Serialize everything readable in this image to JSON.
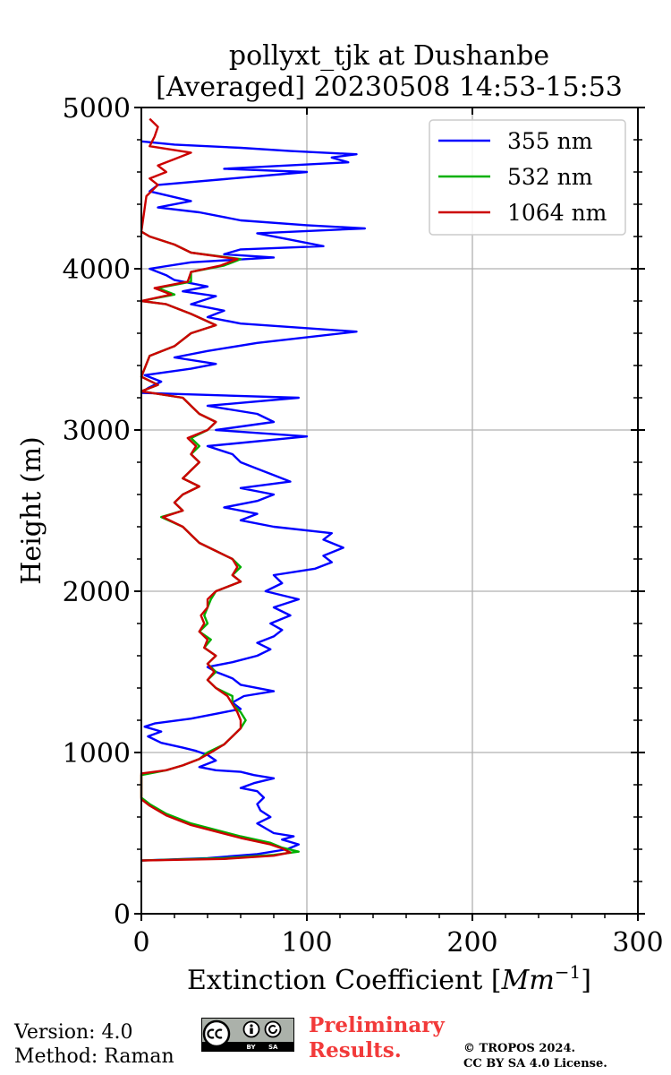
{
  "chart_data": {
    "type": "line",
    "title_line1": "pollyxt_tjk at Dushanbe",
    "title_line2": "[Averaged] 20230508 14:53-15:53",
    "xlabel_main": "Extinction Coefficient [",
    "xlabel_unit": "Mm",
    "xlabel_exp": "−1",
    "xlabel_close": "]",
    "ylabel": "Height (m)",
    "xlim": [
      0,
      300
    ],
    "ylim": [
      0,
      5000
    ],
    "xticks": [
      0,
      100,
      200,
      300
    ],
    "xtick_labels": [
      "0",
      "100",
      "200",
      "300"
    ],
    "yticks": [
      0,
      1000,
      2000,
      3000,
      4000,
      5000
    ],
    "ytick_labels": [
      "0",
      "1000",
      "2000",
      "3000",
      "4000",
      "5000"
    ],
    "grid": true,
    "legend_position": "top-right",
    "series": [
      {
        "name": "355 nm",
        "color": "#0000ff",
        "points": [
          [
            0,
            330
          ],
          [
            40,
            345
          ],
          [
            70,
            370
          ],
          [
            88,
            400
          ],
          [
            95,
            430
          ],
          [
            85,
            460
          ],
          [
            92,
            480
          ],
          [
            80,
            500
          ],
          [
            75,
            530
          ],
          [
            70,
            560
          ],
          [
            78,
            600
          ],
          [
            72,
            640
          ],
          [
            70,
            680
          ],
          [
            74,
            720
          ],
          [
            70,
            760
          ],
          [
            60,
            780
          ],
          [
            68,
            810
          ],
          [
            80,
            840
          ],
          [
            68,
            860
          ],
          [
            60,
            880
          ],
          [
            45,
            890
          ],
          [
            35,
            910
          ],
          [
            45,
            950
          ],
          [
            40,
            985
          ],
          [
            33,
            1010
          ],
          [
            25,
            1030
          ],
          [
            12,
            1060
          ],
          [
            4,
            1100
          ],
          [
            12,
            1130
          ],
          [
            2,
            1160
          ],
          [
            8,
            1180
          ],
          [
            30,
            1210
          ],
          [
            45,
            1240
          ],
          [
            60,
            1270
          ],
          [
            55,
            1310
          ],
          [
            62,
            1350
          ],
          [
            80,
            1380
          ],
          [
            60,
            1420
          ],
          [
            55,
            1460
          ],
          [
            45,
            1500
          ],
          [
            40,
            1530
          ],
          [
            55,
            1560
          ],
          [
            70,
            1600
          ],
          [
            78,
            1640
          ],
          [
            70,
            1680
          ],
          [
            80,
            1720
          ],
          [
            85,
            1760
          ],
          [
            78,
            1800
          ],
          [
            90,
            1850
          ],
          [
            80,
            1900
          ],
          [
            95,
            1950
          ],
          [
            75,
            2000
          ],
          [
            85,
            2050
          ],
          [
            80,
            2100
          ],
          [
            105,
            2140
          ],
          [
            115,
            2180
          ],
          [
            110,
            2220
          ],
          [
            122,
            2270
          ],
          [
            110,
            2320
          ],
          [
            115,
            2360
          ],
          [
            80,
            2400
          ],
          [
            60,
            2440
          ],
          [
            70,
            2480
          ],
          [
            50,
            2520
          ],
          [
            70,
            2560
          ],
          [
            80,
            2600
          ],
          [
            60,
            2640
          ],
          [
            90,
            2680
          ],
          [
            80,
            2720
          ],
          [
            70,
            2760
          ],
          [
            60,
            2800
          ],
          [
            55,
            2850
          ],
          [
            40,
            2900
          ],
          [
            100,
            2960
          ],
          [
            45,
            3000
          ],
          [
            80,
            3050
          ],
          [
            70,
            3100
          ],
          [
            40,
            3150
          ],
          [
            95,
            3200
          ],
          [
            0,
            3230
          ],
          [
            4,
            3260
          ],
          [
            12,
            3300
          ],
          [
            2,
            3340
          ],
          [
            30,
            3380
          ],
          [
            45,
            3410
          ],
          [
            20,
            3450
          ],
          [
            40,
            3490
          ],
          [
            70,
            3540
          ],
          [
            130,
            3610
          ],
          [
            60,
            3660
          ],
          [
            40,
            3700
          ],
          [
            50,
            3740
          ],
          [
            30,
            3780
          ],
          [
            45,
            3830
          ],
          [
            25,
            3860
          ],
          [
            40,
            3890
          ],
          [
            20,
            3930
          ],
          [
            15,
            3960
          ],
          [
            5,
            4000
          ],
          [
            30,
            4040
          ],
          [
            80,
            4070
          ],
          [
            50,
            4090
          ],
          [
            60,
            4120
          ],
          [
            110,
            4140
          ],
          [
            90,
            4180
          ],
          [
            70,
            4220
          ],
          [
            135,
            4250
          ],
          [
            100,
            4270
          ],
          [
            60,
            4300
          ],
          [
            35,
            4350
          ],
          [
            10,
            4380
          ],
          [
            30,
            4420
          ],
          [
            5,
            4480
          ],
          [
            10,
            4520
          ],
          [
            100,
            4600
          ],
          [
            50,
            4620
          ],
          [
            125,
            4660
          ],
          [
            115,
            4690
          ],
          [
            130,
            4710
          ],
          [
            90,
            4730
          ],
          [
            60,
            4750
          ],
          [
            20,
            4770
          ],
          [
            0,
            4790
          ]
        ]
      },
      {
        "name": "532 nm",
        "color": "#00b000",
        "points": [
          [
            0,
            330
          ],
          [
            50,
            345
          ],
          [
            80,
            365
          ],
          [
            95,
            385
          ],
          [
            85,
            410
          ],
          [
            78,
            440
          ],
          [
            60,
            480
          ],
          [
            45,
            520
          ],
          [
            30,
            560
          ],
          [
            15,
            620
          ],
          [
            5,
            680
          ],
          [
            0,
            720
          ],
          [
            0,
            860
          ],
          [
            15,
            890
          ],
          [
            25,
            920
          ],
          [
            35,
            960
          ],
          [
            40,
            1000
          ],
          [
            50,
            1050
          ],
          [
            55,
            1100
          ],
          [
            60,
            1150
          ],
          [
            63,
            1200
          ],
          [
            60,
            1250
          ],
          [
            55,
            1300
          ],
          [
            55,
            1350
          ],
          [
            45,
            1400
          ],
          [
            40,
            1450
          ],
          [
            45,
            1500
          ],
          [
            40,
            1550
          ],
          [
            45,
            1600
          ],
          [
            38,
            1650
          ],
          [
            42,
            1700
          ],
          [
            35,
            1750
          ],
          [
            40,
            1800
          ],
          [
            38,
            1850
          ],
          [
            40,
            1900
          ],
          [
            42,
            1950
          ],
          [
            45,
            2000
          ],
          [
            60,
            2060
          ],
          [
            55,
            2100
          ],
          [
            60,
            2150
          ],
          [
            55,
            2200
          ],
          [
            45,
            2250
          ],
          [
            35,
            2300
          ],
          [
            30,
            2350
          ],
          [
            25,
            2400
          ],
          [
            12,
            2460
          ],
          [
            25,
            2500
          ],
          [
            20,
            2550
          ],
          [
            25,
            2600
          ],
          [
            35,
            2650
          ],
          [
            25,
            2700
          ],
          [
            30,
            2750
          ],
          [
            35,
            2800
          ],
          [
            30,
            2850
          ],
          [
            35,
            2900
          ],
          [
            30,
            2950
          ],
          [
            40,
            3000
          ],
          [
            45,
            3050
          ],
          [
            35,
            3100
          ],
          [
            30,
            3150
          ],
          [
            25,
            3200
          ],
          [
            0,
            3240
          ],
          [
            10,
            3280
          ],
          [
            0,
            3330
          ],
          [
            5,
            3460
          ],
          [
            20,
            3520
          ],
          [
            30,
            3600
          ],
          [
            45,
            3650
          ],
          [
            30,
            3720
          ],
          [
            15,
            3780
          ],
          [
            0,
            3800
          ],
          [
            20,
            3840
          ],
          [
            10,
            3880
          ],
          [
            30,
            3920
          ],
          [
            30,
            3980
          ],
          [
            50,
            4020
          ],
          [
            60,
            4060
          ],
          [
            30,
            4100
          ],
          [
            20,
            4150
          ],
          [
            5,
            4200
          ],
          [
            0,
            4230
          ]
        ]
      },
      {
        "name": "1064 nm",
        "color": "#cc0000",
        "points": [
          [
            0,
            330
          ],
          [
            50,
            340
          ],
          [
            80,
            360
          ],
          [
            90,
            380
          ],
          [
            85,
            405
          ],
          [
            78,
            430
          ],
          [
            60,
            470
          ],
          [
            45,
            510
          ],
          [
            30,
            550
          ],
          [
            15,
            610
          ],
          [
            5,
            670
          ],
          [
            0,
            710
          ],
          [
            0,
            870
          ],
          [
            15,
            890
          ],
          [
            25,
            920
          ],
          [
            35,
            960
          ],
          [
            42,
            1000
          ],
          [
            50,
            1050
          ],
          [
            55,
            1100
          ],
          [
            60,
            1150
          ],
          [
            60,
            1200
          ],
          [
            58,
            1250
          ],
          [
            55,
            1300
          ],
          [
            52,
            1350
          ],
          [
            45,
            1400
          ],
          [
            40,
            1450
          ],
          [
            44,
            1500
          ],
          [
            40,
            1550
          ],
          [
            45,
            1600
          ],
          [
            38,
            1650
          ],
          [
            40,
            1700
          ],
          [
            35,
            1750
          ],
          [
            38,
            1800
          ],
          [
            36,
            1850
          ],
          [
            40,
            1900
          ],
          [
            40,
            1950
          ],
          [
            45,
            2000
          ],
          [
            60,
            2060
          ],
          [
            55,
            2100
          ],
          [
            58,
            2150
          ],
          [
            55,
            2200
          ],
          [
            45,
            2250
          ],
          [
            35,
            2300
          ],
          [
            30,
            2350
          ],
          [
            25,
            2400
          ],
          [
            13,
            2460
          ],
          [
            25,
            2500
          ],
          [
            20,
            2550
          ],
          [
            25,
            2600
          ],
          [
            35,
            2650
          ],
          [
            25,
            2700
          ],
          [
            30,
            2750
          ],
          [
            35,
            2800
          ],
          [
            30,
            2850
          ],
          [
            33,
            2900
          ],
          [
            28,
            2950
          ],
          [
            40,
            3000
          ],
          [
            45,
            3050
          ],
          [
            35,
            3100
          ],
          [
            30,
            3150
          ],
          [
            25,
            3200
          ],
          [
            0,
            3240
          ],
          [
            10,
            3280
          ],
          [
            0,
            3330
          ],
          [
            5,
            3460
          ],
          [
            20,
            3520
          ],
          [
            30,
            3600
          ],
          [
            45,
            3650
          ],
          [
            30,
            3720
          ],
          [
            15,
            3780
          ],
          [
            0,
            3800
          ],
          [
            18,
            3840
          ],
          [
            8,
            3880
          ],
          [
            28,
            3920
          ],
          [
            30,
            3980
          ],
          [
            48,
            4020
          ],
          [
            58,
            4060
          ],
          [
            30,
            4100
          ],
          [
            20,
            4150
          ],
          [
            5,
            4200
          ],
          [
            0,
            4230
          ],
          [
            3,
            4450
          ],
          [
            10,
            4520
          ],
          [
            5,
            4560
          ],
          [
            15,
            4600
          ],
          [
            10,
            4640
          ],
          [
            20,
            4680
          ],
          [
            30,
            4720
          ],
          [
            5,
            4760
          ],
          [
            8,
            4820
          ],
          [
            10,
            4880
          ],
          [
            5,
            4930
          ]
        ]
      }
    ]
  },
  "footer": {
    "version": "Version: 4.0",
    "method": "Method: Raman",
    "preliminary_line1": "Preliminary",
    "preliminary_line2": "Results.",
    "copyright_line1": "© TROPOS 2024.",
    "copyright_line2": "CC BY SA 4.0 License.",
    "license_badge_text": "BY SA"
  }
}
